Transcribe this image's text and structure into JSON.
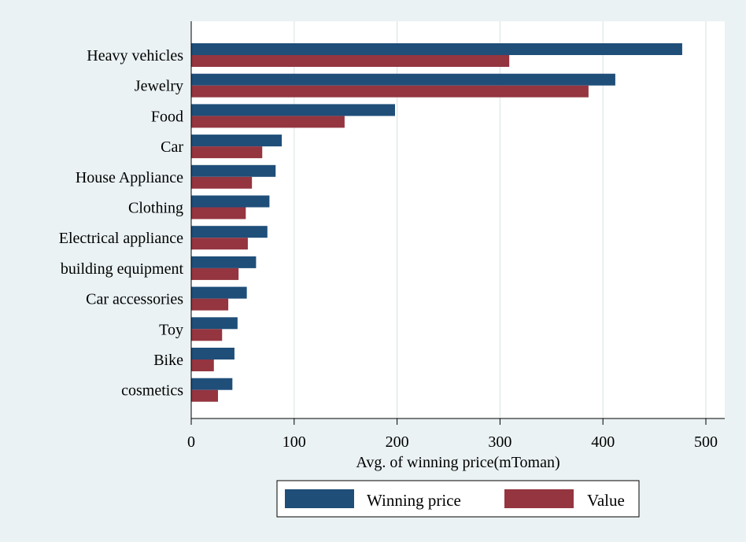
{
  "chart_data": {
    "type": "bar",
    "orientation": "horizontal",
    "categories": [
      "Heavy vehicles",
      "Jewelry",
      "Food",
      "Car",
      "House Appliance",
      "Clothing",
      "Electrical appliance",
      "building equipment",
      "Car accessories",
      "Toy",
      "Bike",
      "cosmetics"
    ],
    "series": [
      {
        "name": "Winning price",
        "color": "#1f4e79",
        "values": [
          477,
          412,
          198,
          88,
          82,
          76,
          74,
          63,
          54,
          45,
          42,
          40
        ]
      },
      {
        "name": "Value",
        "color": "#943540",
        "values": [
          309,
          386,
          149,
          69,
          59,
          53,
          55,
          46,
          36,
          30,
          22,
          26
        ]
      }
    ],
    "xlabel": "Avg. of winning price(mToman)",
    "ylabel": "",
    "xlim": [
      0,
      520
    ],
    "xticks": [
      0,
      100,
      200,
      300,
      400,
      500
    ],
    "xtick_labels": [
      "0",
      "100",
      "200",
      "300",
      "400",
      "500"
    ],
    "grid": true,
    "legend_position": "bottom"
  }
}
